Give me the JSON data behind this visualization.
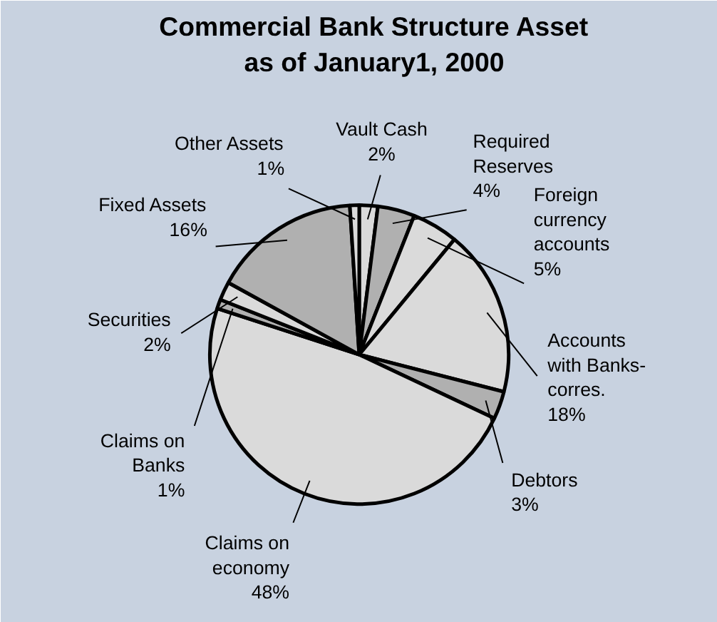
{
  "chart_data": {
    "type": "pie",
    "title": "Commercial Bank Structure Asset as of January1, 2000",
    "categories": [
      "Vault Cash",
      "Required Reserves",
      "Foreign currency accounts",
      "Accounts with Banks-corres.",
      "Debtors",
      "Claims on economy",
      "Claims on Banks",
      "Securities",
      "Fixed Assets",
      "Other Assets"
    ],
    "values": [
      2,
      4,
      5,
      18,
      3,
      48,
      1,
      2,
      16,
      1
    ],
    "colors": [
      "#dadada",
      "#b0b0b0",
      "#dadada",
      "#dadada",
      "#b0b0b0",
      "#dadada",
      "#b0b0b0",
      "#dadada",
      "#b0b0b0",
      "#dadada"
    ],
    "value_labels": [
      "2%",
      "4%",
      "5%",
      "18%",
      "3%",
      "48%",
      "1%",
      "2%",
      "16%",
      "1%"
    ]
  }
}
